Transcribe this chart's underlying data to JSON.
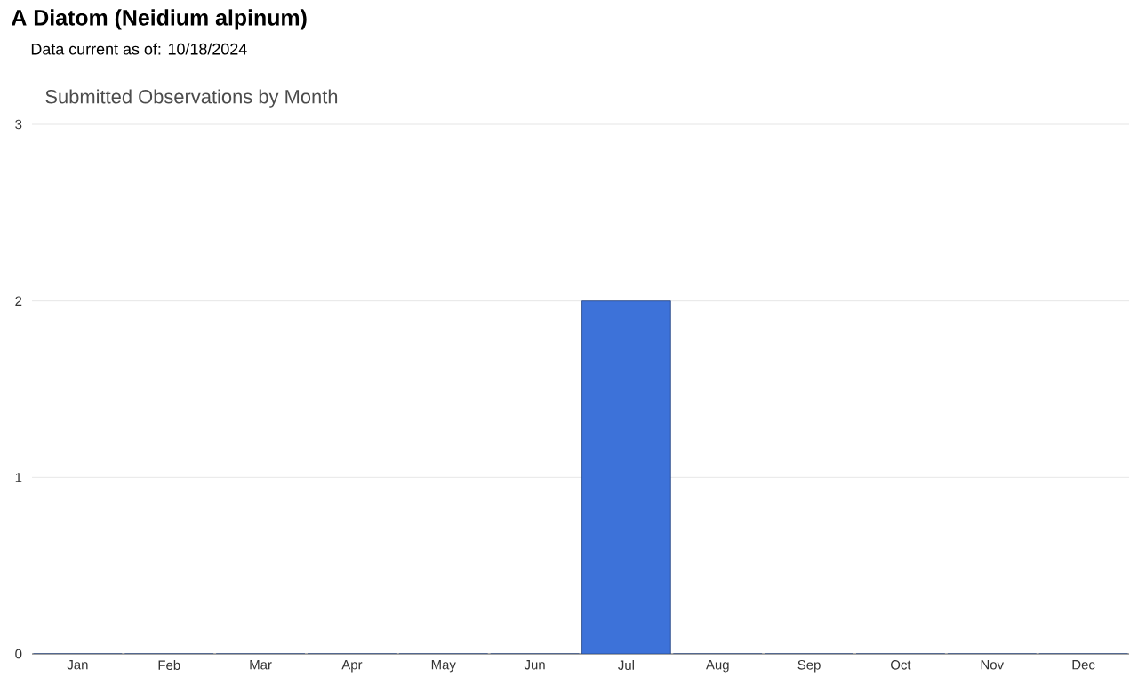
{
  "chart_data": {
    "type": "bar",
    "title": "A Diatom   (Neidium alpinum)",
    "subtitle": "Data current as of: 10/18/2024",
    "annotations": [
      "Submitted Observations by Month"
    ],
    "categories": [
      "Jan",
      "Feb",
      "Mar",
      "Apr",
      "May",
      "Jun",
      "Jul",
      "Aug",
      "Sep",
      "Oct",
      "Nov",
      "Dec"
    ],
    "values": [
      0,
      0,
      0,
      0,
      0,
      0,
      2,
      0,
      0,
      0,
      0,
      0
    ],
    "color": "#3d72d9",
    "ylim": [
      0,
      3
    ],
    "yticks": [
      0,
      1,
      2,
      3
    ],
    "grid": "y"
  }
}
